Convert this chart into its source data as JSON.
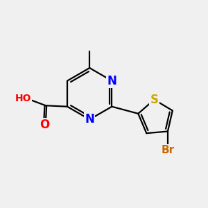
{
  "background_color": "#f0f0f0",
  "bond_color": "#000000",
  "atom_colors": {
    "N": "#0000ff",
    "O": "#ff0000",
    "S": "#ccaa00",
    "Br": "#cc6600",
    "C": "#000000",
    "H": "#607070"
  },
  "bond_width": 1.6,
  "figsize": [
    3.0,
    3.0
  ],
  "dpi": 100,
  "xlim": [
    0,
    10
  ],
  "ylim": [
    0,
    10
  ]
}
